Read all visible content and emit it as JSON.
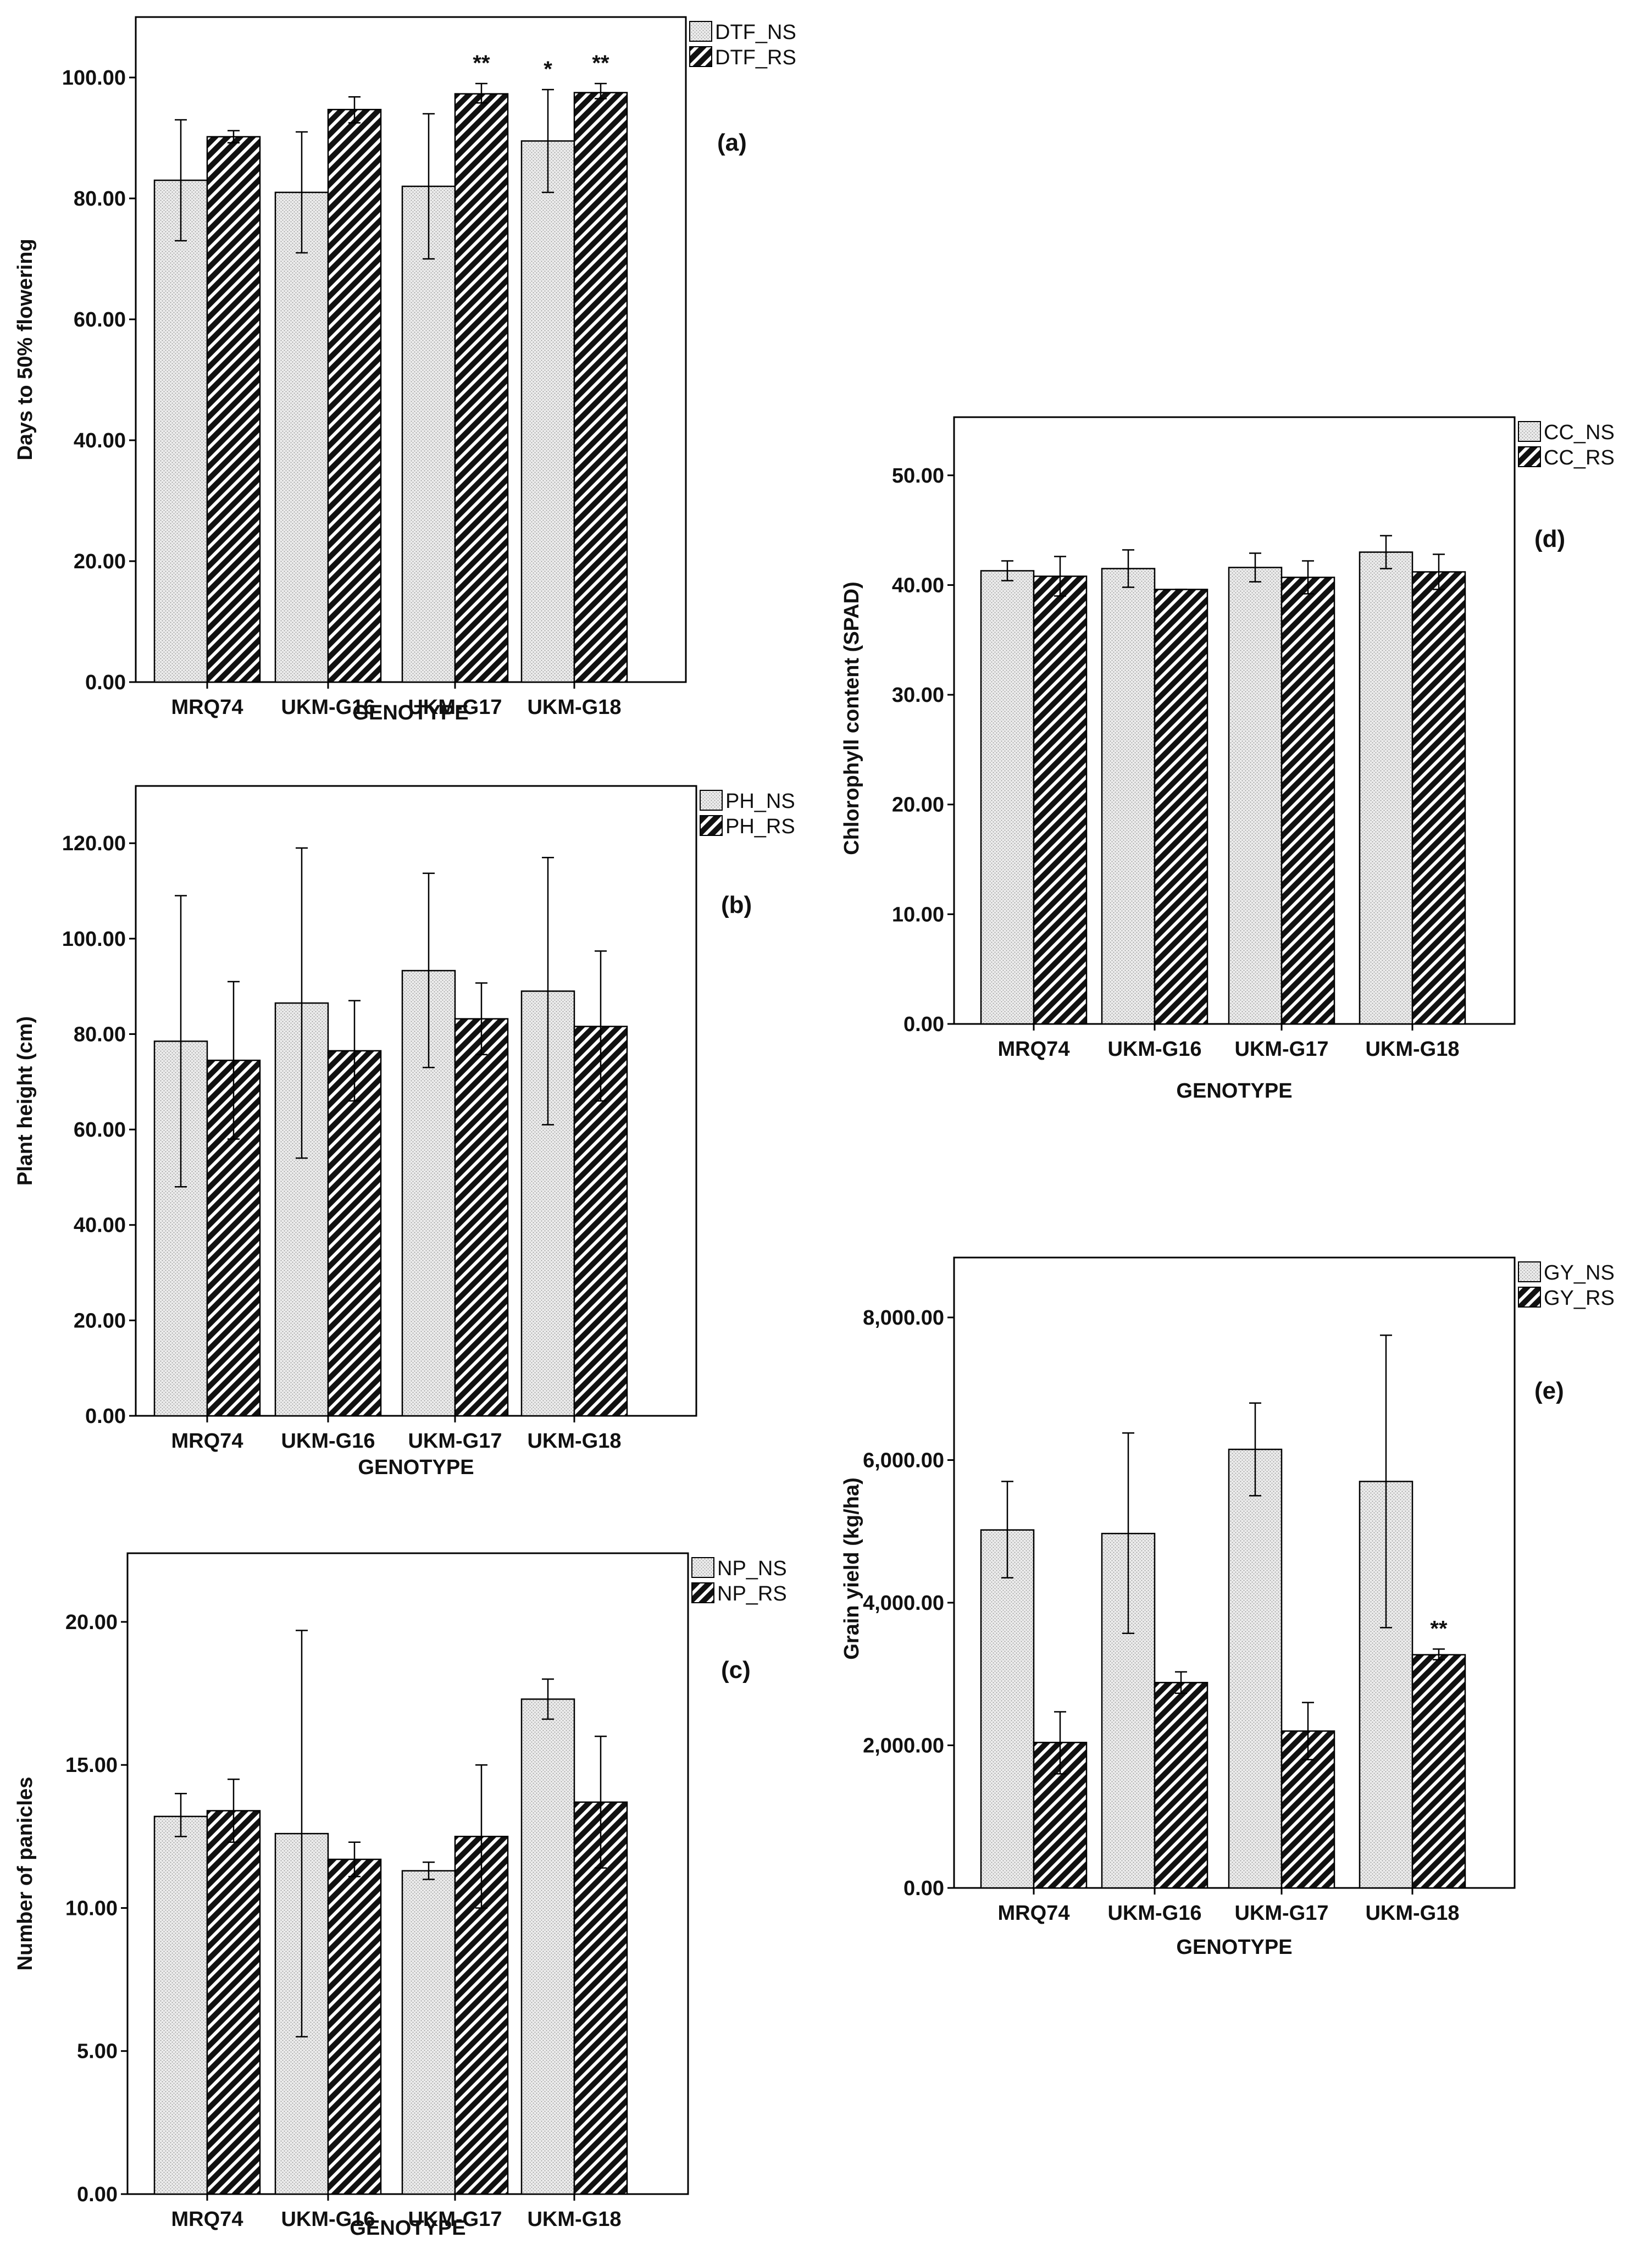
{
  "chart_data": [
    {
      "id": "a",
      "type": "bar",
      "panel_label": "(a)",
      "xlabel": "GENOTYPE",
      "ylabel": "Days to 50% flowering",
      "categories": [
        "MRQ74",
        "UKM-G16",
        "UKM-G17",
        "UKM-G18"
      ],
      "ylim": [
        0,
        110
      ],
      "yticks": [
        0,
        20,
        40,
        60,
        80,
        100
      ],
      "ytick_labels": [
        "0.00",
        "20.00",
        "40.00",
        "60.00",
        "80.00",
        "100.00"
      ],
      "series": [
        {
          "name": "DTF_NS",
          "values": [
            83.0,
            81.0,
            82.0,
            89.5
          ],
          "err_low": [
            73.0,
            71.0,
            70.0,
            81.0
          ],
          "err_high": [
            93.0,
            91.0,
            94.0,
            98.0
          ]
        },
        {
          "name": "DTF_RS",
          "values": [
            90.2,
            94.7,
            97.3,
            97.5
          ],
          "err_low": [
            89.2,
            92.5,
            95.8,
            96.5
          ],
          "err_high": [
            91.2,
            96.8,
            99.0,
            99.0
          ]
        }
      ],
      "significance": [
        {
          "category": "UKM-G17",
          "series": "DTF_RS",
          "label": "**"
        },
        {
          "category": "UKM-G18",
          "series": "DTF_NS",
          "label": "*"
        },
        {
          "category": "UKM-G18",
          "series": "DTF_RS",
          "label": "**"
        }
      ]
    },
    {
      "id": "b",
      "type": "bar",
      "panel_label": "(b)",
      "xlabel": "GENOTYPE",
      "ylabel": "Plant height (cm)",
      "categories": [
        "MRQ74",
        "UKM-G16",
        "UKM-G17",
        "UKM-G18"
      ],
      "ylim": [
        0,
        132
      ],
      "yticks": [
        0,
        20,
        40,
        60,
        80,
        100,
        120
      ],
      "ytick_labels": [
        "0.00",
        "20.00",
        "40.00",
        "60.00",
        "80.00",
        "100.00",
        "120.00"
      ],
      "series": [
        {
          "name": "PH_NS",
          "values": [
            78.5,
            86.5,
            93.3,
            89.0
          ],
          "err_low": [
            48.0,
            54.0,
            73.0,
            61.0
          ],
          "err_high": [
            109.0,
            119.0,
            113.7,
            117.0
          ]
        },
        {
          "name": "PH_RS",
          "values": [
            74.5,
            76.5,
            83.2,
            81.6
          ],
          "err_low": [
            58.0,
            66.0,
            75.7,
            66.0
          ],
          "err_high": [
            91.0,
            87.0,
            90.7,
            97.4
          ]
        }
      ],
      "significance": []
    },
    {
      "id": "c",
      "type": "bar",
      "panel_label": "(c)",
      "xlabel": "GENOTYPE",
      "ylabel": "Number of panicles",
      "categories": [
        "MRQ74",
        "UKM-G16",
        "UKM-G17",
        "UKM-G18"
      ],
      "ylim": [
        0,
        22.4
      ],
      "yticks": [
        0,
        5,
        10,
        15,
        20
      ],
      "ytick_labels": [
        "0.00",
        "5.00",
        "10.00",
        "15.00",
        "20.00"
      ],
      "series": [
        {
          "name": "NP_NS",
          "values": [
            13.2,
            12.6,
            11.3,
            17.3
          ],
          "err_low": [
            12.5,
            5.5,
            11.0,
            16.6
          ],
          "err_high": [
            14.0,
            19.7,
            11.6,
            18.0
          ]
        },
        {
          "name": "NP_RS",
          "values": [
            13.4,
            11.7,
            12.5,
            13.7
          ],
          "err_low": [
            12.3,
            11.1,
            10.0,
            11.4
          ],
          "err_high": [
            14.5,
            12.3,
            15.0,
            16.0
          ]
        }
      ],
      "significance": []
    },
    {
      "id": "d",
      "type": "bar",
      "panel_label": "(d)",
      "xlabel": "GENOTYPE",
      "ylabel": "Chlorophyll content (SPAD)",
      "categories": [
        "MRQ74",
        "UKM-G16",
        "UKM-G17",
        "UKM-G18"
      ],
      "ylim": [
        0,
        55.3
      ],
      "yticks": [
        0,
        10,
        20,
        30,
        40,
        50
      ],
      "ytick_labels": [
        "0.00",
        "10.00",
        "20.00",
        "30.00",
        "40.00",
        "50.00"
      ],
      "series": [
        {
          "name": "CC_NS",
          "values": [
            41.3,
            41.5,
            41.6,
            43.0
          ],
          "err_low": [
            40.4,
            39.8,
            40.3,
            41.5
          ],
          "err_high": [
            42.2,
            43.2,
            42.9,
            44.5
          ]
        },
        {
          "name": "CC_RS",
          "values": [
            40.8,
            39.6,
            40.7,
            41.2
          ],
          "err_low": [
            39.0,
            39.6,
            39.2,
            39.6
          ],
          "err_high": [
            42.6,
            39.6,
            42.2,
            42.8
          ]
        }
      ],
      "significance": []
    },
    {
      "id": "e",
      "type": "bar",
      "panel_label": "(e)",
      "xlabel": "GENOTYPE",
      "ylabel": "Grain yield (kg/ha)",
      "categories": [
        "MRQ74",
        "UKM-G16",
        "UKM-G17",
        "UKM-G18"
      ],
      "ylim": [
        0,
        8840
      ],
      "yticks": [
        0,
        2000,
        4000,
        6000,
        8000
      ],
      "ytick_labels": [
        "0.00",
        "2,000.00",
        "4,000.00",
        "6,000.00",
        "8,000.00"
      ],
      "series": [
        {
          "name": "GY_NS",
          "values": [
            5020,
            4970,
            6150,
            5700
          ],
          "err_low": [
            4350,
            3570,
            5500,
            3650
          ],
          "err_high": [
            5700,
            6380,
            6800,
            7750
          ]
        },
        {
          "name": "GY_RS",
          "values": [
            2040,
            2880,
            2200,
            3270
          ],
          "err_low": [
            1600,
            2730,
            1800,
            3200
          ],
          "err_high": [
            2470,
            3030,
            2600,
            3350
          ]
        }
      ],
      "significance": [
        {
          "category": "UKM-G18",
          "series": "GY_RS",
          "label": "**"
        }
      ]
    }
  ]
}
